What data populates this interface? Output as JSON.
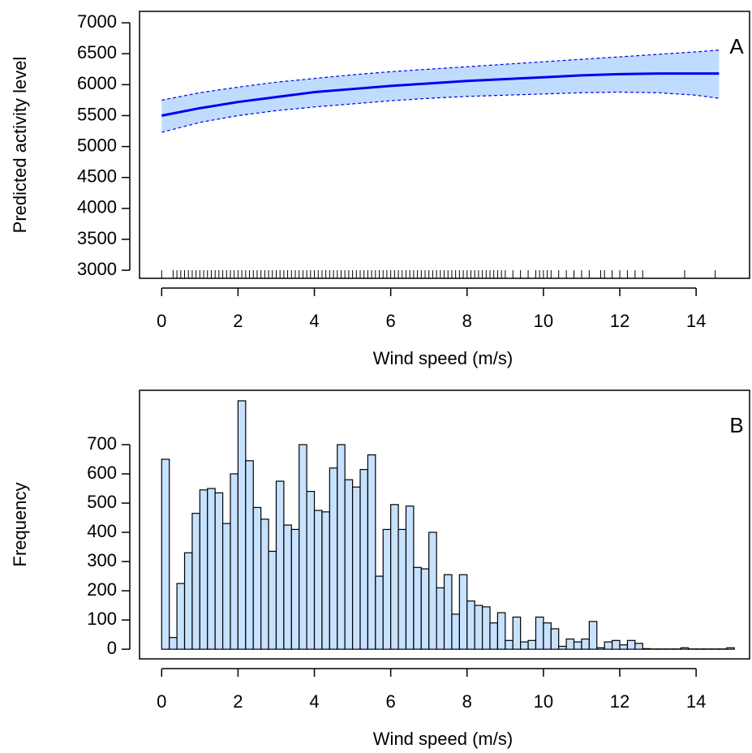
{
  "chart_data": [
    {
      "type": "line",
      "xlabel": "Wind speed (m/s)",
      "ylabel": "Predicted activity level",
      "annotation": "A",
      "x": [
        0,
        1,
        2,
        3,
        4,
        5,
        6,
        7,
        8,
        9,
        10,
        11,
        12,
        13,
        14,
        14.6
      ],
      "values": [
        5500,
        5620,
        5720,
        5800,
        5880,
        5930,
        5980,
        6020,
        6060,
        6090,
        6120,
        6150,
        6170,
        6180,
        6180,
        6180
      ],
      "upper": [
        5750,
        5870,
        5960,
        6040,
        6100,
        6160,
        6210,
        6250,
        6290,
        6330,
        6370,
        6410,
        6450,
        6490,
        6530,
        6560
      ],
      "lower": [
        5230,
        5390,
        5500,
        5580,
        5640,
        5690,
        5740,
        5780,
        5810,
        5830,
        5850,
        5870,
        5880,
        5870,
        5830,
        5780
      ],
      "color": "#0000ee",
      "band_color": "#bfdcff",
      "rug": [
        0,
        0.3,
        0.4,
        0.5,
        0.6,
        0.7,
        0.8,
        0.9,
        1.0,
        1.1,
        1.2,
        1.3,
        1.4,
        1.5,
        1.6,
        1.7,
        1.8,
        1.9,
        2.0,
        2.1,
        2.2,
        2.3,
        2.4,
        2.5,
        2.6,
        2.7,
        2.8,
        2.9,
        3.0,
        3.1,
        3.2,
        3.3,
        3.4,
        3.5,
        3.6,
        3.7,
        3.8,
        3.9,
        4.0,
        4.1,
        4.2,
        4.3,
        4.4,
        4.5,
        4.6,
        4.7,
        4.8,
        4.9,
        5.0,
        5.1,
        5.2,
        5.3,
        5.4,
        5.5,
        5.6,
        5.7,
        5.8,
        5.9,
        6.0,
        6.1,
        6.2,
        6.3,
        6.4,
        6.5,
        6.6,
        6.7,
        6.8,
        6.9,
        7.0,
        7.1,
        7.2,
        7.3,
        7.4,
        7.5,
        7.6,
        7.7,
        7.8,
        7.9,
        8.0,
        8.1,
        8.2,
        8.3,
        8.4,
        8.5,
        8.6,
        8.7,
        8.8,
        8.9,
        9.0,
        9.2,
        9.4,
        9.6,
        9.8,
        9.9,
        10.0,
        10.1,
        10.2,
        10.4,
        10.6,
        10.8,
        11.0,
        11.2,
        11.5,
        11.6,
        11.8,
        12.0,
        12.2,
        12.4,
        12.6,
        13.7,
        14.5
      ],
      "xlim": [
        -0.58,
        15.4
      ],
      "xticks": [
        0,
        2,
        4,
        6,
        8,
        10,
        12,
        14
      ],
      "ylim": [
        2870,
        7185
      ],
      "yticks": [
        3000,
        3500,
        4000,
        4500,
        5000,
        5500,
        6000,
        6500,
        7000
      ]
    },
    {
      "type": "histogram",
      "xlabel": "Wind speed (m/s)",
      "ylabel": "Frequency",
      "annotation": "B",
      "bins": [
        0,
        0.2,
        0.4,
        0.6,
        0.8,
        1.0,
        1.2,
        1.4,
        1.6,
        1.8,
        2.0,
        2.2,
        2.4,
        2.6,
        2.8,
        3.0,
        3.2,
        3.4,
        3.6,
        3.8,
        4.0,
        4.2,
        4.4,
        4.6,
        4.8,
        5.0,
        5.2,
        5.4,
        5.6,
        5.8,
        6.0,
        6.2,
        6.4,
        6.6,
        6.8,
        7.0,
        7.2,
        7.4,
        7.6,
        7.8,
        8.0,
        8.2,
        8.4,
        8.6,
        8.8,
        9.0,
        9.2,
        9.4,
        9.6,
        9.8,
        10.0,
        10.2,
        10.4,
        10.6,
        10.8,
        11.0,
        11.2,
        11.4,
        11.6,
        11.8,
        12.0,
        12.2,
        12.4,
        12.6,
        12.8,
        13.0,
        13.2,
        13.4,
        13.6,
        13.8,
        14.0,
        14.2,
        14.4,
        14.6,
        14.8,
        15.0
      ],
      "values": [
        650,
        40,
        225,
        330,
        465,
        545,
        550,
        535,
        430,
        600,
        850,
        645,
        485,
        445,
        335,
        575,
        425,
        410,
        700,
        540,
        475,
        470,
        620,
        700,
        580,
        555,
        615,
        665,
        250,
        410,
        495,
        410,
        490,
        280,
        275,
        400,
        210,
        255,
        120,
        255,
        165,
        150,
        145,
        90,
        125,
        30,
        110,
        25,
        30,
        110,
        90,
        70,
        10,
        35,
        25,
        35,
        95,
        5,
        25,
        30,
        15,
        30,
        20,
        2,
        1,
        1,
        1,
        1,
        5,
        1,
        1,
        1,
        1,
        1,
        5
      ],
      "color": "#c6e2ff",
      "xlim": [
        -0.58,
        15.4
      ],
      "xticks": [
        0,
        2,
        4,
        6,
        8,
        10,
        12,
        14
      ],
      "ylim": [
        -33,
        886
      ],
      "yticks": [
        0,
        100,
        200,
        300,
        400,
        500,
        600,
        700
      ]
    }
  ]
}
